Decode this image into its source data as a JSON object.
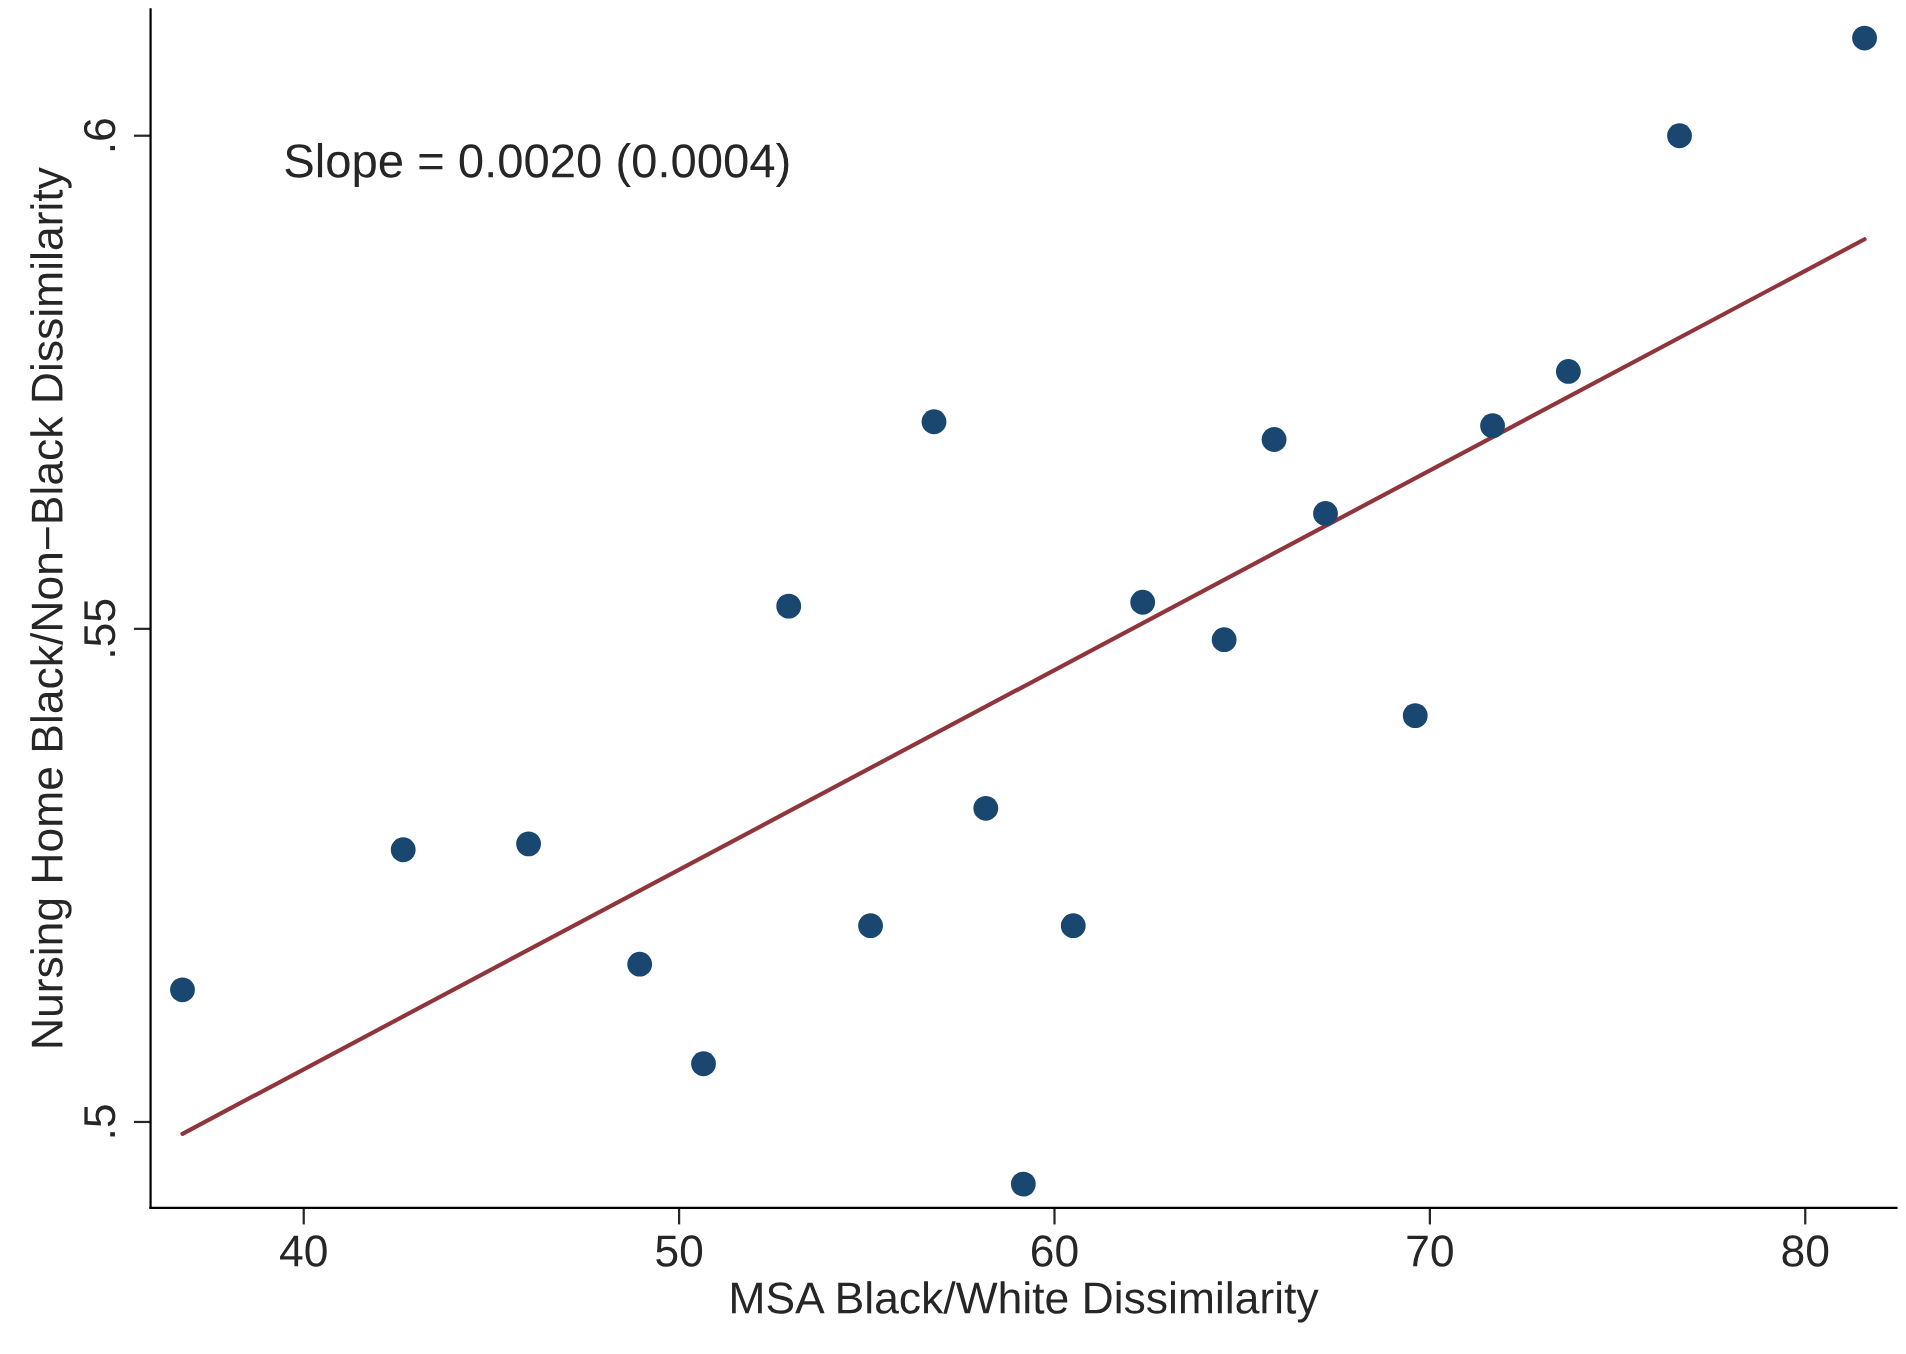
{
  "chart_data": {
    "type": "scatter",
    "xlabel": "MSA Black/White Dissimilarity",
    "ylabel": "Nursing Home Black/Non−Black Dissimilarity",
    "annotations": [
      "Slope = 0.0020 (0.0004)"
    ],
    "series": [
      {
        "color": "#1a476f",
        "marker": "circle",
        "x": [
          36.77,
          42.65,
          45.99,
          48.95,
          50.65,
          52.92,
          55.1,
          56.79,
          58.17,
          59.17,
          60.5,
          62.35,
          64.52,
          65.85,
          67.22,
          69.61,
          71.67,
          73.69,
          76.65,
          81.58
        ],
        "values": [
          0.5134,
          0.5276,
          0.5282,
          0.516,
          0.5059,
          0.5523,
          0.5199,
          0.571,
          0.5318,
          0.4937,
          0.5199,
          0.5527,
          0.5489,
          0.5692,
          0.5617,
          0.5412,
          0.5706,
          0.5761,
          0.6,
          0.6099
        ]
      },
      {
        "type": "line",
        "color": "#90353b",
        "x": [
          36.77,
          81.58
        ],
        "values": [
          0.4988,
          0.5895
        ]
      }
    ],
    "grid": false,
    "legend": false,
    "xlim": [
      35.92,
      82.43
    ],
    "xticks": [
      40,
      50,
      60,
      70,
      80
    ],
    "ylim": [
      0.4913,
      0.6128
    ],
    "yticks": [
      {
        "value": 0.5,
        "label": ".5"
      },
      {
        "value": 0.55,
        "label": ".55"
      },
      {
        "value": 0.6,
        "label": ".6"
      }
    ]
  }
}
